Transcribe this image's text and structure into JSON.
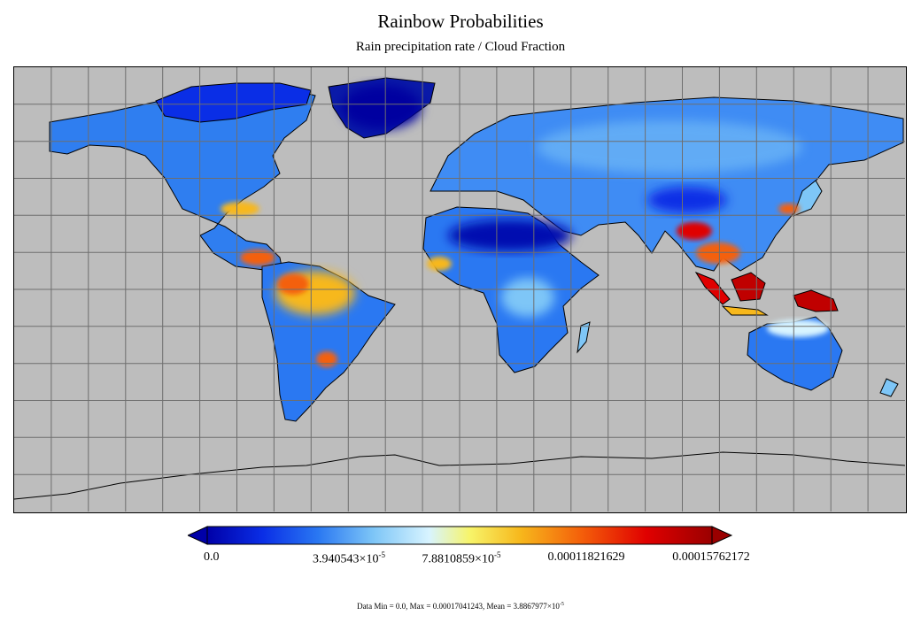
{
  "title": "Rainbow Probabilities",
  "subtitle": "Rain precipitation rate / Cloud Fraction",
  "colors": {
    "ocean": "#bdbdbd",
    "grid": "#6e6e6e",
    "coastline": "#000000",
    "ramp": [
      "#0000a8",
      "#0a2ee6",
      "#2a78f2",
      "#7ec6f7",
      "#d8f4ff",
      "#f7f46a",
      "#f7b81c",
      "#f4600a",
      "#e00000",
      "#9a0000"
    ]
  },
  "colorbar": {
    "min": "0.0",
    "ticks": [
      {
        "label": "0.0"
      },
      {
        "mant": "3.940543",
        "exp": "-5"
      },
      {
        "mant": "7.8810859",
        "exp": "-5"
      },
      {
        "label": "0.00011821629"
      },
      {
        "label": "0.00015762172"
      }
    ]
  },
  "stats": {
    "prefix": "Data Min = 0.0, Max = 0.00017041243, Mean = 3.8867977",
    "exp": "-5"
  },
  "chart_data": {
    "type": "heatmap",
    "title": "Rainbow Probabilities",
    "subtitle": "Rain precipitation rate / Cloud Fraction",
    "projection": "equirectangular",
    "grid": true,
    "colorbar_ticks": [
      0.0,
      3.940543e-05,
      7.8810859e-05,
      0.00011821629,
      0.00015762172
    ],
    "data_min": 0.0,
    "data_max": 0.00017041243,
    "data_mean": 3.8867977e-05,
    "hotspots": [
      {
        "region": "Maritime Continent",
        "level": "max"
      },
      {
        "region": "Amazon Basin",
        "level": "high"
      },
      {
        "region": "Central America",
        "level": "high"
      },
      {
        "region": "Bangladesh / Myanmar",
        "level": "high"
      },
      {
        "region": "Gulf Coast USA",
        "level": "medium"
      },
      {
        "region": "Guinea Coast",
        "level": "medium"
      },
      {
        "region": "La Plata Basin",
        "level": "high"
      },
      {
        "region": "Sahara",
        "level": "min"
      },
      {
        "region": "Greenland",
        "level": "min"
      }
    ]
  }
}
